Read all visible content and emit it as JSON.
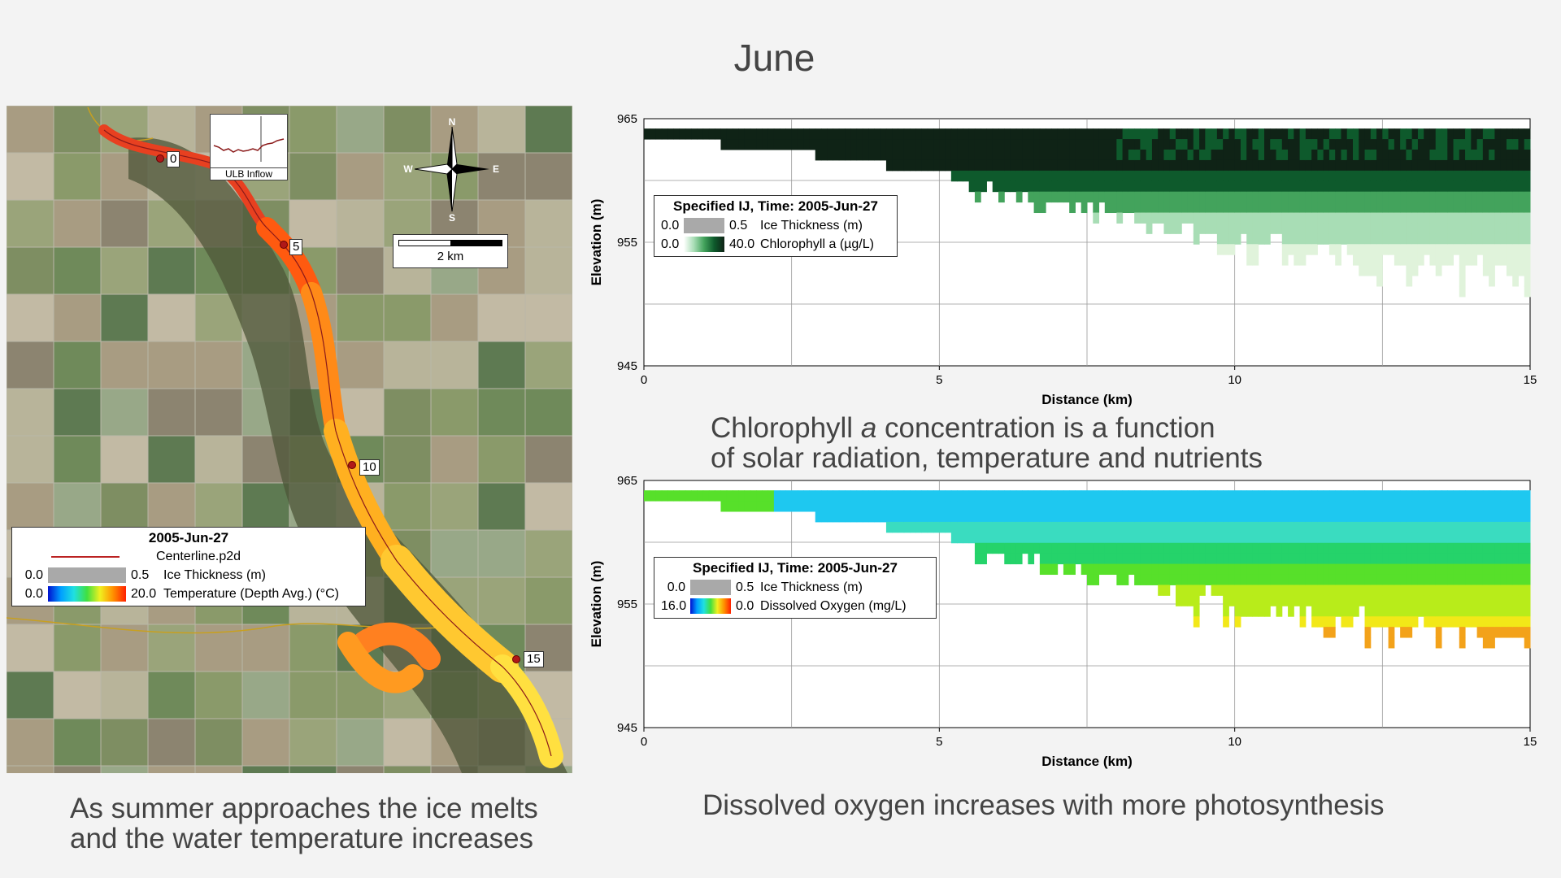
{
  "slide": {
    "title": "June",
    "left_caption": [
      "As summer approaches the ice melts",
      "and the water temperature increases"
    ],
    "middle_caption": {
      "line1_a": "Chlorophyll ",
      "line1_italic": "a",
      "line1_b": " concentration is a function",
      "line2": "of solar radiation, temperature and nutrients"
    },
    "bottom_caption": "Dissolved oxygen increases with more photosynthesis"
  },
  "map": {
    "inflow_label": "ULB Inflow",
    "compass": {
      "n": "N",
      "s": "S",
      "e": "E",
      "w": "W"
    },
    "scale_label": "2 km",
    "km_markers": [
      "0",
      "5",
      "10",
      "15"
    ],
    "legend": {
      "title": "2005-Jun-27",
      "centerline": "Centerline.p2d",
      "ice": {
        "min": "0.0",
        "max": "0.5",
        "label": "Ice Thickness (m)"
      },
      "temp": {
        "min": "0.0",
        "max": "20.0",
        "label": "Temperature (Depth Avg.) (°C)"
      }
    }
  },
  "chart_data": [
    {
      "type": "heatmap",
      "title": "",
      "xlabel": "Distance (km)",
      "ylabel": "Elevation (m)",
      "xlim": [
        0,
        15
      ],
      "ylim": [
        945,
        965
      ],
      "x_ticks": [
        "0",
        "5",
        "10",
        "15"
      ],
      "y_ticks": [
        "945",
        "955",
        "965"
      ],
      "grid": true,
      "legend": {
        "title": "Specified IJ, Time: 2005-Jun-27",
        "rows": [
          {
            "min": "0.0",
            "max": "0.5",
            "label": "Ice Thickness (m)"
          },
          {
            "min": "0.0",
            "max": "40.0",
            "label": "Chlorophyll a (µg/L)"
          }
        ]
      },
      "colors": [
        "#ffffff",
        "#e0f3db",
        "#a8ddb5",
        "#43a35c",
        "#0e5a2c",
        "#0f2316"
      ]
    },
    {
      "type": "heatmap",
      "title": "",
      "xlabel": "Distance (km)",
      "ylabel": "Elevation (m)",
      "xlim": [
        0,
        15
      ],
      "ylim": [
        945,
        965
      ],
      "x_ticks": [
        "0",
        "5",
        "10",
        "15"
      ],
      "y_ticks": [
        "945",
        "955",
        "965"
      ],
      "grid": true,
      "legend": {
        "title": "Specified IJ, Time: 2005-Jun-27",
        "rows": [
          {
            "min": "0.0",
            "max": "0.5",
            "label": "Ice Thickness (m)"
          },
          {
            "min": "16.0",
            "max": "0.0",
            "label": "Dissolved Oxygen (mg/L)"
          }
        ]
      },
      "colors": [
        "#1ec8f0",
        "#3adcc0",
        "#25d36a",
        "#57e02a",
        "#b8ec1a",
        "#f2e818",
        "#f3a21a"
      ]
    }
  ]
}
